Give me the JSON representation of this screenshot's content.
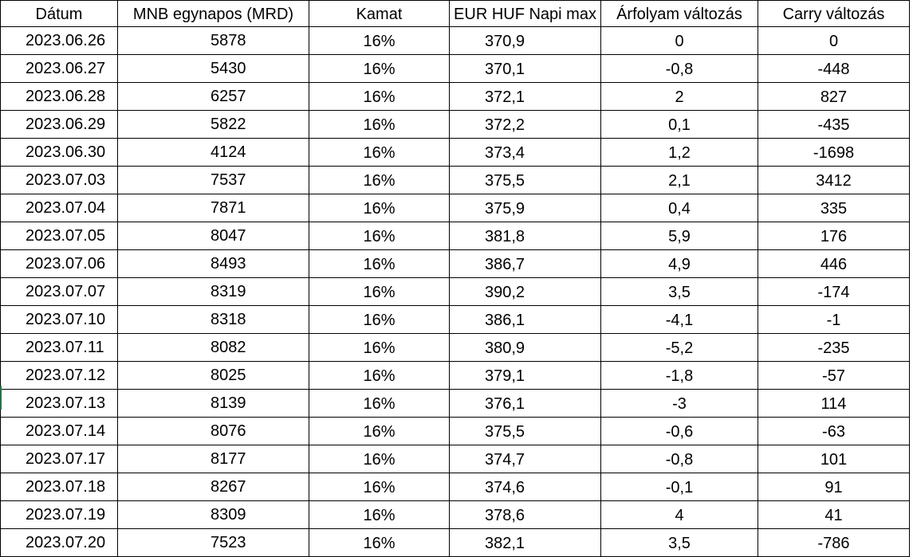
{
  "table": {
    "headers": {
      "date": "Dátum",
      "mnb": "MNB egynapos (MRD)",
      "kamat": "Kamat",
      "eur": "EUR HUF Napi max",
      "arfolyam": "Árfolyam változás",
      "carry": "Carry változás"
    },
    "rows": [
      {
        "date": "2023.06.26",
        "mnb": "5878",
        "kamat": "16%",
        "eur": "370,9",
        "arfolyam": "0",
        "carry": "0"
      },
      {
        "date": "2023.06.27",
        "mnb": "5430",
        "kamat": "16%",
        "eur": "370,1",
        "arfolyam": "-0,8",
        "carry": "-448"
      },
      {
        "date": "2023.06.28",
        "mnb": "6257",
        "kamat": "16%",
        "eur": "372,1",
        "arfolyam": "2",
        "carry": "827"
      },
      {
        "date": "2023.06.29",
        "mnb": "5822",
        "kamat": "16%",
        "eur": "372,2",
        "arfolyam": "0,1",
        "carry": "-435"
      },
      {
        "date": "2023.06.30",
        "mnb": "4124",
        "kamat": "16%",
        "eur": "373,4",
        "arfolyam": "1,2",
        "carry": "-1698"
      },
      {
        "date": "2023.07.03",
        "mnb": "7537",
        "kamat": "16%",
        "eur": "375,5",
        "arfolyam": "2,1",
        "carry": "3412"
      },
      {
        "date": "2023.07.04",
        "mnb": "7871",
        "kamat": "16%",
        "eur": "375,9",
        "arfolyam": "0,4",
        "carry": "335"
      },
      {
        "date": "2023.07.05",
        "mnb": "8047",
        "kamat": "16%",
        "eur": "381,8",
        "arfolyam": "5,9",
        "carry": "176"
      },
      {
        "date": "2023.07.06",
        "mnb": "8493",
        "kamat": "16%",
        "eur": "386,7",
        "arfolyam": "4,9",
        "carry": "446"
      },
      {
        "date": "2023.07.07",
        "mnb": "8319",
        "kamat": "16%",
        "eur": "390,2",
        "arfolyam": "3,5",
        "carry": "-174"
      },
      {
        "date": "2023.07.10",
        "mnb": "8318",
        "kamat": "16%",
        "eur": "386,1",
        "arfolyam": "-4,1",
        "carry": "-1"
      },
      {
        "date": "2023.07.11",
        "mnb": "8082",
        "kamat": "16%",
        "eur": "380,9",
        "arfolyam": "-5,2",
        "carry": "-235"
      },
      {
        "date": "2023.07.12",
        "mnb": "8025",
        "kamat": "16%",
        "eur": "379,1",
        "arfolyam": "-1,8",
        "carry": "-57"
      },
      {
        "date": "2023.07.13",
        "mnb": "8139",
        "kamat": "16%",
        "eur": "376,1",
        "arfolyam": "-3",
        "carry": "114"
      },
      {
        "date": "2023.07.14",
        "mnb": "8076",
        "kamat": "16%",
        "eur": "375,5",
        "arfolyam": "-0,6",
        "carry": "-63"
      },
      {
        "date": "2023.07.17",
        "mnb": "8177",
        "kamat": "16%",
        "eur": "374,7",
        "arfolyam": "-0,8",
        "carry": "101"
      },
      {
        "date": "2023.07.18",
        "mnb": "8267",
        "kamat": "16%",
        "eur": "374,6",
        "arfolyam": "-0,1",
        "carry": "91"
      },
      {
        "date": "2023.07.19",
        "mnb": "8309",
        "kamat": "16%",
        "eur": "378,6",
        "arfolyam": "4",
        "carry": "41"
      },
      {
        "date": "2023.07.20",
        "mnb": "7523",
        "kamat": "16%",
        "eur": "382,1",
        "arfolyam": "3,5",
        "carry": "-786"
      }
    ]
  },
  "colors": {
    "gridline": "#000000",
    "background": "#ffffff",
    "selection_accent": "#217346"
  }
}
